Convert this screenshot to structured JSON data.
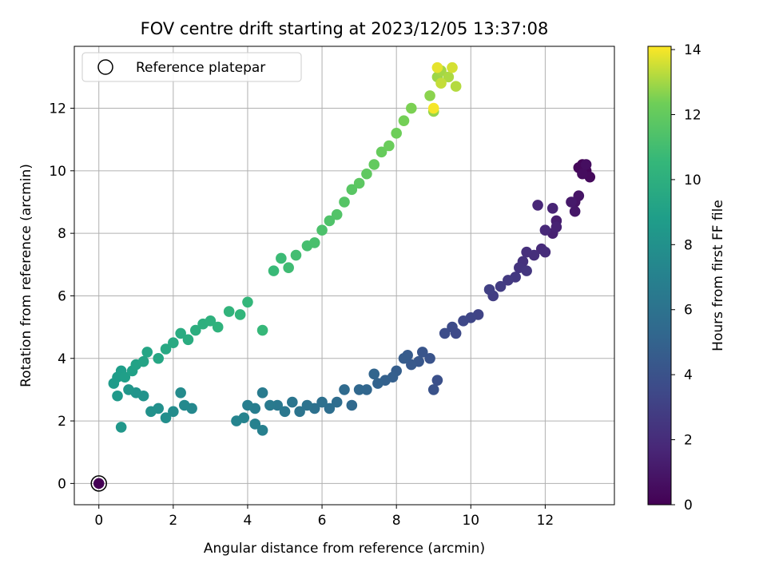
{
  "chart_data": {
    "type": "scatter",
    "title": "FOV centre drift starting at 2023/12/05 13:37:08",
    "xlabel": "Angular distance from reference (arcmin)",
    "ylabel": "Rotation from reference (arcmin)",
    "xlim": [
      -0.66,
      13.86
    ],
    "ylim": [
      -0.68,
      13.98
    ],
    "xticks": [
      "0",
      "2",
      "4",
      "6",
      "8",
      "10",
      "12"
    ],
    "yticks": [
      "0",
      "2",
      "4",
      "6",
      "8",
      "10",
      "12"
    ],
    "grid": true,
    "legend": {
      "position": "upper left",
      "entries": [
        "Reference platepar"
      ]
    },
    "colorbar": {
      "label": "Hours from first FF file",
      "range": [
        0,
        14.1
      ],
      "ticks": [
        "0",
        "2",
        "4",
        "6",
        "8",
        "10",
        "12",
        "14"
      ],
      "colormap": "viridis"
    },
    "reference_point": {
      "x": 0,
      "y": 0,
      "hours": 0
    },
    "points": [
      [
        13.0,
        10.2,
        0.1
      ],
      [
        13.1,
        10.0,
        0.2
      ],
      [
        12.9,
        10.1,
        0.3
      ],
      [
        13.2,
        9.8,
        0.4
      ],
      [
        13.0,
        9.9,
        0.5
      ],
      [
        13.1,
        10.2,
        0.6
      ],
      [
        12.8,
        9.0,
        0.8
      ],
      [
        12.9,
        9.2,
        0.9
      ],
      [
        12.8,
        8.7,
        1.0
      ],
      [
        12.7,
        9.0,
        1.1
      ],
      [
        12.3,
        8.4,
        1.3
      ],
      [
        12.2,
        8.0,
        1.4
      ],
      [
        12.3,
        8.2,
        1.5
      ],
      [
        12.2,
        8.8,
        1.6
      ],
      [
        11.8,
        8.9,
        1.7
      ],
      [
        12.0,
        8.1,
        1.8
      ],
      [
        11.9,
        7.5,
        1.9
      ],
      [
        12.0,
        7.4,
        2.0
      ],
      [
        11.7,
        7.3,
        2.1
      ],
      [
        11.5,
        7.4,
        2.2
      ],
      [
        11.4,
        7.1,
        2.3
      ],
      [
        11.3,
        6.9,
        2.4
      ],
      [
        11.5,
        6.8,
        2.5
      ],
      [
        11.2,
        6.6,
        2.6
      ],
      [
        11.0,
        6.5,
        2.7
      ],
      [
        10.8,
        6.3,
        2.8
      ],
      [
        10.6,
        6.0,
        2.9
      ],
      [
        10.5,
        6.2,
        3.0
      ],
      [
        10.2,
        5.4,
        3.2
      ],
      [
        10.0,
        5.3,
        3.3
      ],
      [
        9.8,
        5.2,
        3.4
      ],
      [
        9.6,
        4.8,
        3.5
      ],
      [
        9.5,
        5.0,
        3.6
      ],
      [
        9.3,
        4.8,
        3.7
      ],
      [
        9.1,
        3.3,
        3.9
      ],
      [
        9.0,
        3.0,
        4.0
      ],
      [
        8.9,
        4.0,
        4.1
      ],
      [
        8.7,
        4.2,
        4.2
      ],
      [
        8.6,
        3.9,
        4.3
      ],
      [
        8.4,
        3.8,
        4.4
      ],
      [
        8.3,
        4.1,
        4.5
      ],
      [
        8.2,
        4.0,
        4.6
      ],
      [
        8.0,
        3.6,
        4.7
      ],
      [
        7.9,
        3.4,
        4.8
      ],
      [
        7.7,
        3.3,
        4.9
      ],
      [
        7.5,
        3.2,
        5.0
      ],
      [
        7.4,
        3.5,
        5.1
      ],
      [
        7.2,
        3.0,
        5.2
      ],
      [
        7.0,
        3.0,
        5.3
      ],
      [
        6.8,
        2.5,
        5.4
      ],
      [
        6.6,
        3.0,
        5.5
      ],
      [
        6.4,
        2.6,
        5.6
      ],
      [
        6.2,
        2.4,
        5.7
      ],
      [
        6.0,
        2.6,
        5.8
      ],
      [
        5.8,
        2.4,
        5.9
      ],
      [
        5.6,
        2.5,
        6.0
      ],
      [
        5.4,
        2.3,
        6.1
      ],
      [
        5.2,
        2.6,
        6.2
      ],
      [
        5.0,
        2.3,
        6.3
      ],
      [
        4.8,
        2.5,
        6.4
      ],
      [
        4.6,
        2.5,
        6.5
      ],
      [
        4.4,
        2.9,
        6.6
      ],
      [
        4.2,
        2.4,
        6.7
      ],
      [
        4.0,
        2.5,
        6.8
      ],
      [
        4.4,
        1.7,
        6.9
      ],
      [
        4.2,
        1.9,
        7.0
      ],
      [
        3.9,
        2.1,
        7.1
      ],
      [
        3.7,
        2.0,
        7.2
      ],
      [
        2.5,
        2.4,
        7.4
      ],
      [
        2.3,
        2.5,
        7.5
      ],
      [
        2.2,
        2.9,
        7.6
      ],
      [
        2.0,
        2.3,
        7.7
      ],
      [
        1.8,
        2.1,
        7.8
      ],
      [
        1.6,
        2.4,
        7.9
      ],
      [
        1.4,
        2.3,
        8.0
      ],
      [
        1.2,
        2.8,
        8.1
      ],
      [
        1.0,
        2.9,
        8.2
      ],
      [
        0.8,
        3.0,
        8.3
      ],
      [
        0.6,
        1.8,
        8.4
      ],
      [
        0.5,
        2.8,
        8.5
      ],
      [
        0.4,
        3.2,
        8.6
      ],
      [
        0.5,
        3.4,
        8.7
      ],
      [
        0.6,
        3.6,
        8.8
      ],
      [
        0.7,
        3.4,
        8.9
      ],
      [
        0.9,
        3.6,
        9.0
      ],
      [
        1.0,
        3.8,
        9.1
      ],
      [
        1.2,
        3.9,
        9.2
      ],
      [
        1.3,
        4.2,
        9.3
      ],
      [
        1.6,
        4.0,
        9.4
      ],
      [
        1.8,
        4.3,
        9.5
      ],
      [
        2.0,
        4.5,
        9.6
      ],
      [
        2.2,
        4.8,
        9.7
      ],
      [
        2.4,
        4.6,
        9.8
      ],
      [
        2.6,
        4.9,
        9.9
      ],
      [
        2.8,
        5.1,
        10.0
      ],
      [
        3.0,
        5.2,
        10.1
      ],
      [
        3.2,
        5.0,
        10.2
      ],
      [
        3.5,
        5.5,
        10.3
      ],
      [
        3.8,
        5.4,
        10.4
      ],
      [
        4.0,
        5.8,
        10.5
      ],
      [
        4.4,
        4.9,
        10.6
      ],
      [
        4.7,
        6.8,
        10.7
      ],
      [
        4.9,
        7.2,
        10.8
      ],
      [
        5.1,
        6.9,
        10.9
      ],
      [
        5.3,
        7.3,
        11.0
      ],
      [
        5.6,
        7.6,
        11.1
      ],
      [
        5.8,
        7.7,
        11.2
      ],
      [
        6.0,
        8.1,
        11.3
      ],
      [
        6.2,
        8.4,
        11.4
      ],
      [
        6.4,
        8.6,
        11.5
      ],
      [
        6.6,
        9.0,
        11.6
      ],
      [
        6.8,
        9.4,
        11.7
      ],
      [
        7.0,
        9.6,
        11.8
      ],
      [
        7.2,
        9.9,
        11.9
      ],
      [
        7.4,
        10.2,
        12.0
      ],
      [
        7.6,
        10.6,
        12.1
      ],
      [
        7.8,
        10.8,
        12.2
      ],
      [
        8.0,
        11.2,
        12.3
      ],
      [
        8.2,
        11.6,
        12.4
      ],
      [
        8.4,
        12.0,
        12.5
      ],
      [
        8.9,
        12.4,
        12.7
      ],
      [
        9.0,
        11.9,
        12.8
      ],
      [
        9.1,
        13.0,
        12.9
      ],
      [
        9.2,
        13.2,
        13.0
      ],
      [
        9.4,
        13.0,
        13.1
      ],
      [
        9.6,
        12.7,
        13.2
      ],
      [
        9.2,
        12.8,
        13.4
      ],
      [
        9.5,
        13.3,
        13.6
      ],
      [
        9.1,
        13.3,
        13.8
      ],
      [
        9.0,
        12.0,
        14.0
      ]
    ]
  }
}
